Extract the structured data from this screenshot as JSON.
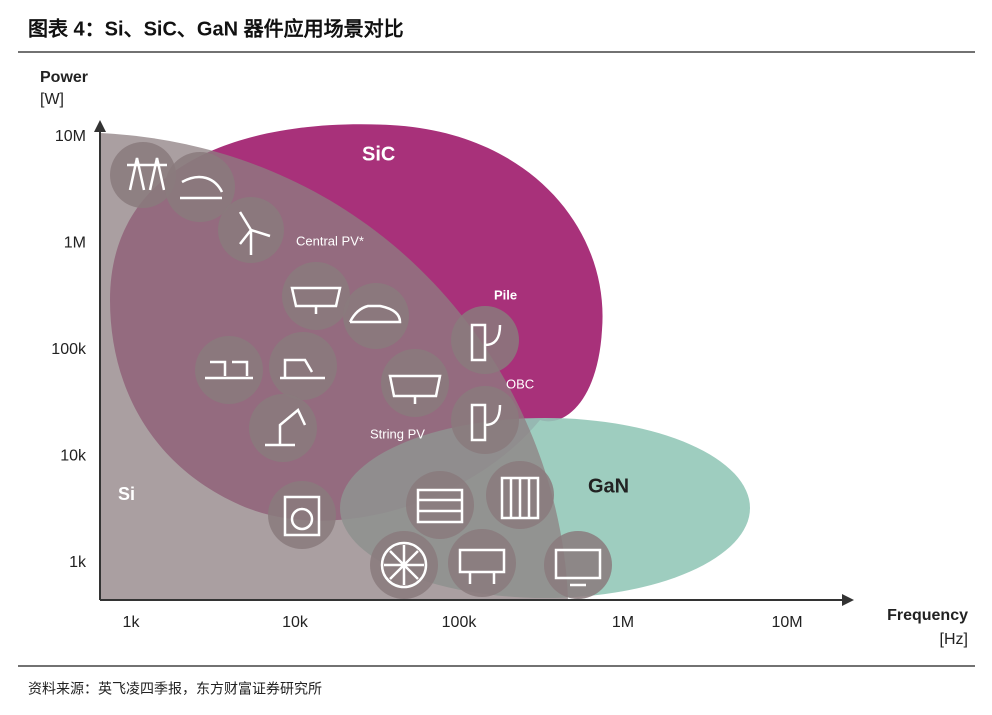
{
  "header": {
    "title": "图表 4：Si、SiC、GaN 器件应用场景对比"
  },
  "axes": {
    "y": {
      "title": "Power",
      "unit": "[W]",
      "ticks": [
        "10M",
        "1M",
        "100k",
        "10k",
        "1k"
      ]
    },
    "x": {
      "title": "Frequency",
      "unit": "[Hz]",
      "ticks": [
        "1k",
        "10k",
        "100k",
        "1M",
        "10M"
      ]
    }
  },
  "regions": {
    "sic": "SiC",
    "gan": "GaN",
    "si": "Si"
  },
  "annotations": {
    "central_pv": "Central PV*",
    "pile": "Pile",
    "obc": "OBC",
    "string_pv": "String PV"
  },
  "footer": {
    "source": "资料来源：英飞凌四季报，东方财富证券研究所"
  }
}
